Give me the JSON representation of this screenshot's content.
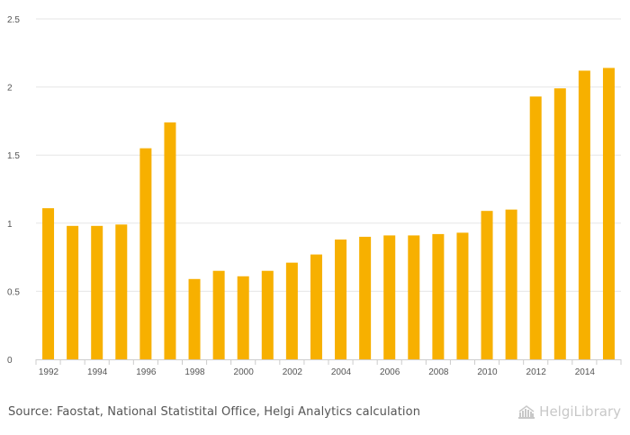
{
  "chart_data": {
    "type": "bar",
    "categories": [
      "1992",
      "1993",
      "1994",
      "1995",
      "1996",
      "1997",
      "1998",
      "1999",
      "2000",
      "2001",
      "2002",
      "2003",
      "2004",
      "2005",
      "2006",
      "2007",
      "2008",
      "2009",
      "2010",
      "2011",
      "2012",
      "2013",
      "2014",
      "2015"
    ],
    "values": [
      1.11,
      0.98,
      0.98,
      0.99,
      1.55,
      1.74,
      0.59,
      0.65,
      0.61,
      0.65,
      0.71,
      0.77,
      0.88,
      0.9,
      0.91,
      0.91,
      0.92,
      0.93,
      1.09,
      1.1,
      1.93,
      1.99,
      2.12,
      2.14
    ],
    "x_tick_labels": [
      "1992",
      "1994",
      "1996",
      "1998",
      "2000",
      "2002",
      "2004",
      "2006",
      "2008",
      "2010",
      "2012",
      "2014"
    ],
    "y_ticks": [
      0,
      0.5,
      1,
      1.5,
      2,
      2.5
    ],
    "y_tick_labels": [
      "0",
      "0.5",
      "1",
      "1.5",
      "2",
      "2.5"
    ],
    "ylim": [
      0,
      2.5
    ],
    "grid": true,
    "bar_color": "#f7b000",
    "title": "",
    "xlabel": "",
    "ylabel": ""
  },
  "footer": {
    "source": "Source: Faostat, National Statistital Office, Helgi Analytics calculation",
    "brand": "HelgiLibrary"
  }
}
